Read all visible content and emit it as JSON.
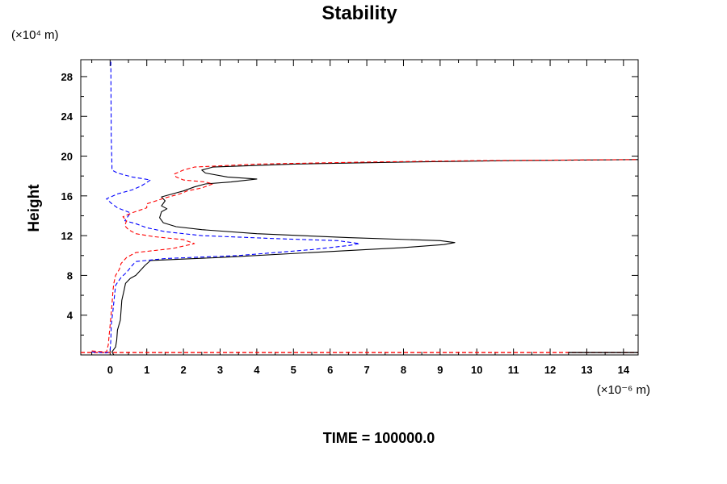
{
  "chart_data": {
    "type": "line",
    "title": "Stability",
    "ylabel": "Height",
    "xlabel": "",
    "y_unit": "(×10⁴ m)",
    "x_unit": "(×10⁻⁶ m)",
    "footer": "TIME = 100000.0",
    "xlim": [
      -0.8,
      14.4
    ],
    "ylim": [
      0,
      29.7
    ],
    "x_ticks": [
      0,
      1,
      2,
      3,
      4,
      5,
      6,
      7,
      8,
      9,
      10,
      11,
      12,
      13,
      14
    ],
    "x_tick_labels": [
      "0",
      "1",
      "2",
      "3",
      "4",
      "5",
      "6",
      "7",
      "8",
      "9",
      "10",
      "11",
      "12",
      "13",
      "14"
    ],
    "y_ticks": [
      4,
      8,
      12,
      16,
      20,
      24,
      28
    ],
    "y_tick_labels": [
      "4",
      "8",
      "12",
      "16",
      "20",
      "24",
      "28"
    ],
    "series": [
      {
        "color": "#000000",
        "style": "solid",
        "points": [
          [
            0.1,
            0.0
          ],
          [
            0.05,
            0.3
          ],
          [
            0.15,
            0.8
          ],
          [
            0.18,
            1.5
          ],
          [
            0.2,
            2.5
          ],
          [
            0.28,
            3.5
          ],
          [
            0.3,
            4.5
          ],
          [
            0.32,
            5.5
          ],
          [
            0.38,
            6.5
          ],
          [
            0.42,
            7.2
          ],
          [
            0.55,
            7.7
          ],
          [
            0.7,
            8.0
          ],
          [
            0.8,
            8.4
          ],
          [
            0.95,
            9.0
          ],
          [
            1.1,
            9.5
          ],
          [
            3.0,
            9.8
          ],
          [
            6.0,
            10.4
          ],
          [
            8.0,
            10.8
          ],
          [
            9.1,
            11.1
          ],
          [
            9.4,
            11.3
          ],
          [
            9.0,
            11.5
          ],
          [
            6.5,
            11.8
          ],
          [
            4.0,
            12.2
          ],
          [
            2.5,
            12.6
          ],
          [
            1.8,
            12.9
          ],
          [
            1.45,
            13.3
          ],
          [
            1.35,
            13.8
          ],
          [
            1.4,
            14.4
          ],
          [
            1.55,
            14.7
          ],
          [
            1.4,
            15.0
          ],
          [
            1.5,
            15.5
          ],
          [
            1.4,
            15.9
          ],
          [
            1.8,
            16.3
          ],
          [
            2.0,
            16.5
          ],
          [
            2.3,
            16.9
          ],
          [
            2.6,
            17.2
          ],
          [
            3.3,
            17.4
          ],
          [
            4.0,
            17.7
          ],
          [
            3.2,
            17.9
          ],
          [
            2.6,
            18.3
          ],
          [
            2.5,
            18.6
          ],
          [
            2.8,
            18.9
          ],
          [
            5.0,
            19.2
          ],
          [
            8.0,
            19.4
          ],
          [
            11.0,
            19.55
          ],
          [
            14.4,
            19.65
          ]
        ]
      },
      {
        "color": "#0000ff",
        "style": "dashed",
        "points": [
          [
            -0.5,
            0.3
          ],
          [
            -0.1,
            0.2
          ],
          [
            0.0,
            0.4
          ],
          [
            0.02,
            1.5
          ],
          [
            0.03,
            3.0
          ],
          [
            0.08,
            4.5
          ],
          [
            0.12,
            6.0
          ],
          [
            0.15,
            7.0
          ],
          [
            0.3,
            7.8
          ],
          [
            0.45,
            8.3
          ],
          [
            0.6,
            9.0
          ],
          [
            0.7,
            9.4
          ],
          [
            1.5,
            9.7
          ],
          [
            3.5,
            10.0
          ],
          [
            5.5,
            10.6
          ],
          [
            6.5,
            11.0
          ],
          [
            6.8,
            11.2
          ],
          [
            6.2,
            11.5
          ],
          [
            4.5,
            11.7
          ],
          [
            2.5,
            12.0
          ],
          [
            1.5,
            12.4
          ],
          [
            1.0,
            12.8
          ],
          [
            0.7,
            13.2
          ],
          [
            0.4,
            13.5
          ],
          [
            0.5,
            14.0
          ],
          [
            0.55,
            14.3
          ],
          [
            0.2,
            14.8
          ],
          [
            0.05,
            15.2
          ],
          [
            -0.1,
            15.7
          ],
          [
            0.2,
            16.2
          ],
          [
            0.6,
            16.6
          ],
          [
            0.85,
            17.0
          ],
          [
            1.1,
            17.6
          ],
          [
            0.6,
            17.9
          ],
          [
            0.2,
            18.3
          ],
          [
            0.05,
            18.6
          ],
          [
            0.05,
            19.0
          ],
          [
            0.03,
            22.0
          ],
          [
            0.02,
            29.7
          ]
        ]
      },
      {
        "color": "#ff0000",
        "style": "dashed",
        "points": [
          [
            -0.5,
            0.4
          ],
          [
            -0.1,
            0.3
          ],
          [
            -0.05,
            1.0
          ],
          [
            0.0,
            3.0
          ],
          [
            0.05,
            5.0
          ],
          [
            0.08,
            6.5
          ],
          [
            0.1,
            7.2
          ],
          [
            0.15,
            8.0
          ],
          [
            0.25,
            8.6
          ],
          [
            0.3,
            9.2
          ],
          [
            0.45,
            9.8
          ],
          [
            0.7,
            10.3
          ],
          [
            1.7,
            10.7
          ],
          [
            2.3,
            11.2
          ],
          [
            2.0,
            11.6
          ],
          [
            1.2,
            11.9
          ],
          [
            0.7,
            12.2
          ],
          [
            0.5,
            12.6
          ],
          [
            0.4,
            13.0
          ],
          [
            0.45,
            13.5
          ],
          [
            0.35,
            13.9
          ],
          [
            0.6,
            14.3
          ],
          [
            1.0,
            14.8
          ],
          [
            1.0,
            15.2
          ],
          [
            1.5,
            15.8
          ],
          [
            1.9,
            16.2
          ],
          [
            2.1,
            16.5
          ],
          [
            2.5,
            16.8
          ],
          [
            2.8,
            17.2
          ],
          [
            2.6,
            17.4
          ],
          [
            2.0,
            17.6
          ],
          [
            1.8,
            17.9
          ],
          [
            1.75,
            18.2
          ],
          [
            2.0,
            18.6
          ],
          [
            2.3,
            18.9
          ],
          [
            4.0,
            19.2
          ],
          [
            7.0,
            19.4
          ],
          [
            10.0,
            19.55
          ],
          [
            14.4,
            19.65
          ]
        ]
      }
    ],
    "baseline": {
      "y": 0.25,
      "segments": [
        {
          "color": "#ff0000",
          "x": [
            -0.8,
            14.4
          ]
        },
        {
          "color": "#000000",
          "x": [
            12.5,
            14.4
          ]
        }
      ]
    }
  }
}
